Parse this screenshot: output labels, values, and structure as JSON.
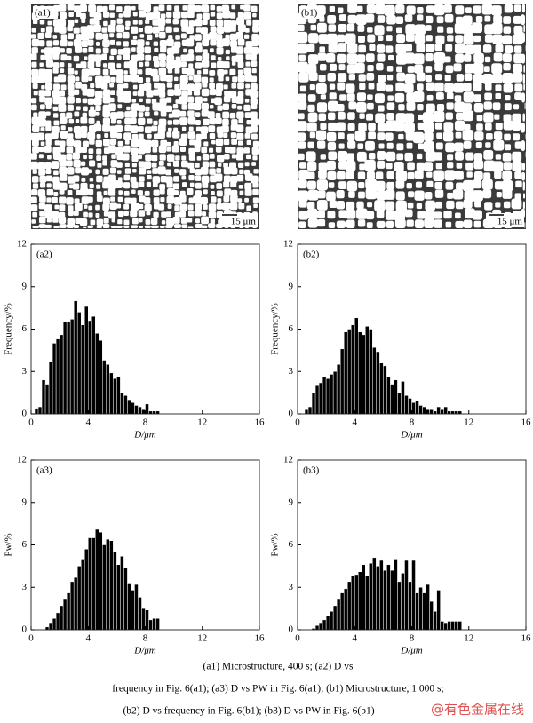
{
  "micrographs": [
    {
      "label": "(a1)",
      "scale_bar": "15 μm"
    },
    {
      "label": "(b1)",
      "scale_bar": "15 μm"
    }
  ],
  "chart_data": [
    {
      "type": "histogram",
      "label": "(a2)",
      "xlabel": "D/μm",
      "ylabel": "Frequency/%",
      "color": "#000000",
      "xlim": [
        0,
        16
      ],
      "xticks": [
        0,
        4,
        8,
        12,
        16
      ],
      "ylim": [
        0,
        12
      ],
      "yticks": [
        0,
        3,
        6,
        9,
        12
      ],
      "bins": [
        0.25,
        0.5,
        0.75,
        1.0,
        1.25,
        1.5,
        1.75,
        2.0,
        2.25,
        2.5,
        2.75,
        3.0,
        3.25,
        3.5,
        3.75,
        4.0,
        4.25,
        4.5,
        4.75,
        5.0,
        5.25,
        5.5,
        5.75,
        6.0,
        6.25,
        6.5,
        6.75,
        7.0,
        7.25,
        7.5,
        7.75,
        8.0,
        8.25,
        8.5,
        8.75,
        9.0
      ],
      "values": [
        0.4,
        0.5,
        2.4,
        2.1,
        3.7,
        5.0,
        5.3,
        5.6,
        6.5,
        6.5,
        6.7,
        8.0,
        7.2,
        6.3,
        7.6,
        6.6,
        6.9,
        5.7,
        5.2,
        3.8,
        3.5,
        2.9,
        2.5,
        2.6,
        1.5,
        1.3,
        1.0,
        0.8,
        0.6,
        0.5,
        0.3,
        0.7,
        0.2,
        0.2,
        0.2
      ]
    },
    {
      "type": "histogram",
      "label": "(b2)",
      "xlabel": "D/μm",
      "ylabel": "Frequency/%",
      "color": "#000000",
      "xlim": [
        0,
        16
      ],
      "xticks": [
        0,
        4,
        8,
        12,
        16
      ],
      "ylim": [
        0,
        12
      ],
      "yticks": [
        0,
        3,
        6,
        9,
        12
      ],
      "bins": [
        0.5,
        0.75,
        1.0,
        1.25,
        1.5,
        1.75,
        2.0,
        2.25,
        2.5,
        2.75,
        3.0,
        3.25,
        3.5,
        3.75,
        4.0,
        4.25,
        4.5,
        4.75,
        5.0,
        5.25,
        5.5,
        5.75,
        6.0,
        6.25,
        6.5,
        6.75,
        7.0,
        7.25,
        7.5,
        7.75,
        8.0,
        8.25,
        8.5,
        8.75,
        9.0,
        9.25,
        9.5,
        9.75,
        10.0,
        10.25,
        10.5,
        10.75,
        11.0,
        11.25,
        11.5
      ],
      "values": [
        0.3,
        0.5,
        1.5,
        2.0,
        2.2,
        2.6,
        2.5,
        2.8,
        3.0,
        3.5,
        4.6,
        5.8,
        6.0,
        6.3,
        6.8,
        5.8,
        5.6,
        6.2,
        6.0,
        4.7,
        4.4,
        3.6,
        3.4,
        2.6,
        2.1,
        2.4,
        1.5,
        2.3,
        1.3,
        1.1,
        0.8,
        0.9,
        0.6,
        0.5,
        0.3,
        0.3,
        0.2,
        0.5,
        0.3,
        0.5,
        0.2,
        0.2,
        0.2,
        0.2
      ]
    },
    {
      "type": "histogram",
      "label": "(a3)",
      "xlabel": "D/μm",
      "ylabel": "Pw/%",
      "color": "#000000",
      "xlim": [
        0,
        16
      ],
      "xticks": [
        0,
        4,
        8,
        12,
        16
      ],
      "ylim": [
        0,
        12
      ],
      "yticks": [
        0,
        3,
        6,
        9,
        12
      ],
      "bins": [
        1.0,
        1.25,
        1.5,
        1.75,
        2.0,
        2.25,
        2.5,
        2.75,
        3.0,
        3.25,
        3.5,
        3.75,
        4.0,
        4.25,
        4.5,
        4.75,
        5.0,
        5.25,
        5.5,
        5.75,
        6.0,
        6.25,
        6.5,
        6.75,
        7.0,
        7.25,
        7.5,
        7.75,
        8.0,
        8.25,
        8.5,
        8.75,
        9.0
      ],
      "values": [
        0.2,
        0.5,
        0.8,
        1.2,
        1.7,
        2.2,
        2.6,
        3.4,
        3.7,
        4.5,
        5.0,
        5.7,
        6.5,
        6.5,
        7.1,
        6.9,
        6.0,
        6.4,
        6.3,
        5.5,
        4.6,
        5.2,
        4.4,
        3.3,
        2.8,
        3.2,
        2.3,
        1.5,
        1.4,
        0.7,
        0.8,
        0.8
      ]
    },
    {
      "type": "histogram",
      "label": "(b3)",
      "xlabel": "D/μm",
      "ylabel": "Pw/%",
      "color": "#000000",
      "xlim": [
        0,
        16
      ],
      "xticks": [
        0,
        4,
        8,
        12,
        16
      ],
      "ylim": [
        0,
        12
      ],
      "yticks": [
        0,
        3,
        6,
        9,
        12
      ],
      "bins": [
        1.0,
        1.25,
        1.5,
        1.75,
        2.0,
        2.25,
        2.5,
        2.75,
        3.0,
        3.25,
        3.5,
        3.75,
        4.0,
        4.25,
        4.5,
        4.75,
        5.0,
        5.25,
        5.5,
        5.75,
        6.0,
        6.25,
        6.5,
        6.75,
        7.0,
        7.25,
        7.5,
        7.75,
        8.0,
        8.25,
        8.5,
        8.75,
        9.0,
        9.25,
        9.5,
        9.75,
        10.0,
        10.25,
        10.5,
        10.75,
        11.0,
        11.25,
        11.5
      ],
      "values": [
        0.1,
        0.3,
        0.5,
        0.7,
        1.0,
        1.3,
        1.7,
        2.2,
        2.6,
        2.9,
        3.4,
        3.8,
        3.9,
        4.1,
        4.6,
        3.8,
        4.7,
        5.1,
        4.5,
        4.9,
        4.2,
        4.6,
        4.2,
        5.0,
        3.4,
        4.0,
        4.9,
        3.4,
        4.9,
        2.6,
        3.0,
        2.6,
        3.2,
        2.0,
        1.3,
        2.8,
        0.6,
        0.5,
        0.6,
        0.6,
        0.6,
        0.6
      ]
    }
  ],
  "caption": [
    "(a1) Microstructure, 400 s; (a2) D vs",
    "frequency in Fig. 6(a1); (a3) D vs PW in Fig. 6(a1); (b1) Microstructure, 1 000 s;",
    "(b2) D vs frequency in Fig. 6(b1); (b3) D vs PW in  Fig. 6(b1)"
  ],
  "watermark": "@有色金属在线"
}
